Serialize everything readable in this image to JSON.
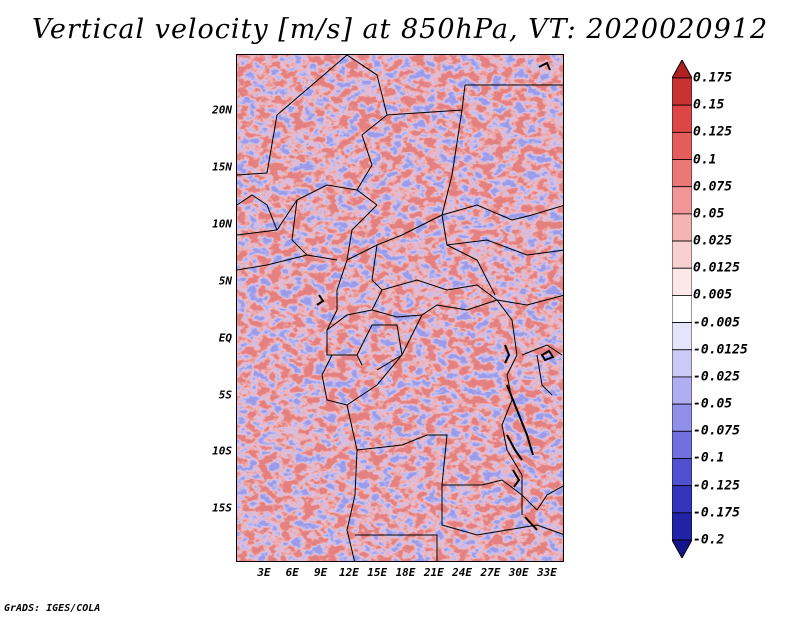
{
  "title": "Vertical velocity [m/s] at 850hPa, VT: 2020020912",
  "credit": "GrADS: IGES/COLA",
  "map": {
    "type": "filled-contour map",
    "variable": "Vertical velocity",
    "units": "m/s",
    "level": "850hPa",
    "valid_time": "2020020912",
    "lat_ticks": [
      "20N",
      "15N",
      "10N",
      "5N",
      "EQ",
      "5S",
      "10S",
      "15S"
    ],
    "lon_ticks": [
      "3E",
      "6E",
      "9E",
      "12E",
      "15E",
      "18E",
      "21E",
      "24E",
      "27E",
      "30E",
      "33E"
    ],
    "lon_range": [
      0.5,
      35.0
    ],
    "lat_range": [
      -19.8,
      24.8
    ]
  },
  "colorbar": {
    "labels": [
      "0.175",
      "0.15",
      "0.125",
      "0.1",
      "0.075",
      "0.05",
      "0.025",
      "0.0125",
      "0.005",
      "-0.005",
      "-0.0125",
      "-0.025",
      "-0.05",
      "-0.075",
      "-0.1",
      "-0.125",
      "-0.175",
      "-0.2"
    ],
    "colors": [
      "#b02020",
      "#c83232",
      "#dc4646",
      "#e45c5c",
      "#ea7878",
      "#f09696",
      "#f5b4b4",
      "#f9d0d0",
      "#fde8e8",
      "#ffffff",
      "#e4e4fb",
      "#cacaf6",
      "#aeaef0",
      "#9090e8",
      "#7070de",
      "#5050d0",
      "#3434bc",
      "#2222a6",
      "#14148e"
    ]
  }
}
